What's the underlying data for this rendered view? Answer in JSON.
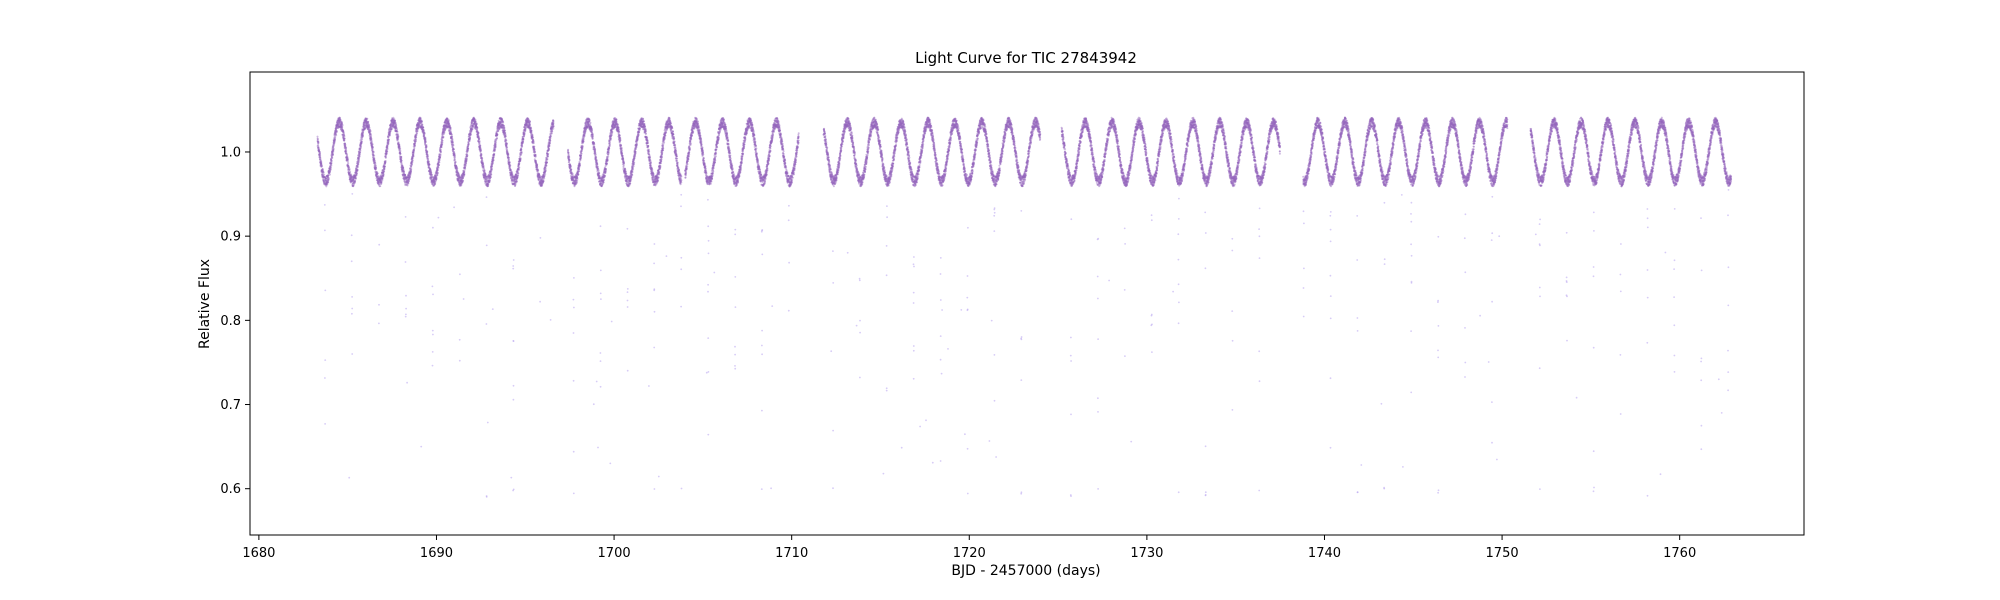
{
  "chart_data": {
    "type": "scatter",
    "title": "Light Curve for TIC 27843942",
    "xlabel": "BJD - 2457000 (days)",
    "ylabel": "Relative Flux",
    "xlim": [
      1679.5,
      1767.0
    ],
    "ylim": [
      0.545,
      1.095
    ],
    "xticks": [
      1680,
      1690,
      1700,
      1710,
      1720,
      1730,
      1740,
      1750,
      1760
    ],
    "yticks": [
      0.6,
      0.7,
      0.8,
      0.9,
      1.0
    ],
    "ytick_labels": [
      "0.6",
      "0.7",
      "0.8",
      "0.9",
      "1.0"
    ],
    "grid": false,
    "legend": "none",
    "marker_color": "#9467bd",
    "sparse_point_color": "#b7a3ee",
    "period_days": 1.515,
    "baseline_flux": 1.0,
    "variation_amplitude": 0.035,
    "eclipse_min_flux": 0.59,
    "segments": [
      {
        "start": 1683.3,
        "end": 1696.6,
        "phase0": 1684.0
      },
      {
        "start": 1697.4,
        "end": 1703.8,
        "phase0": 1698.0
      },
      {
        "start": 1704.0,
        "end": 1710.4,
        "phase0": 1698.0
      },
      {
        "start": 1711.8,
        "end": 1724.0,
        "phase0": 1712.6
      },
      {
        "start": 1725.2,
        "end": 1737.5,
        "phase0": 1726.0
      },
      {
        "start": 1738.8,
        "end": 1750.3,
        "phase0": 1739.1
      },
      {
        "start": 1751.6,
        "end": 1762.9,
        "phase0": 1752.4
      }
    ]
  }
}
